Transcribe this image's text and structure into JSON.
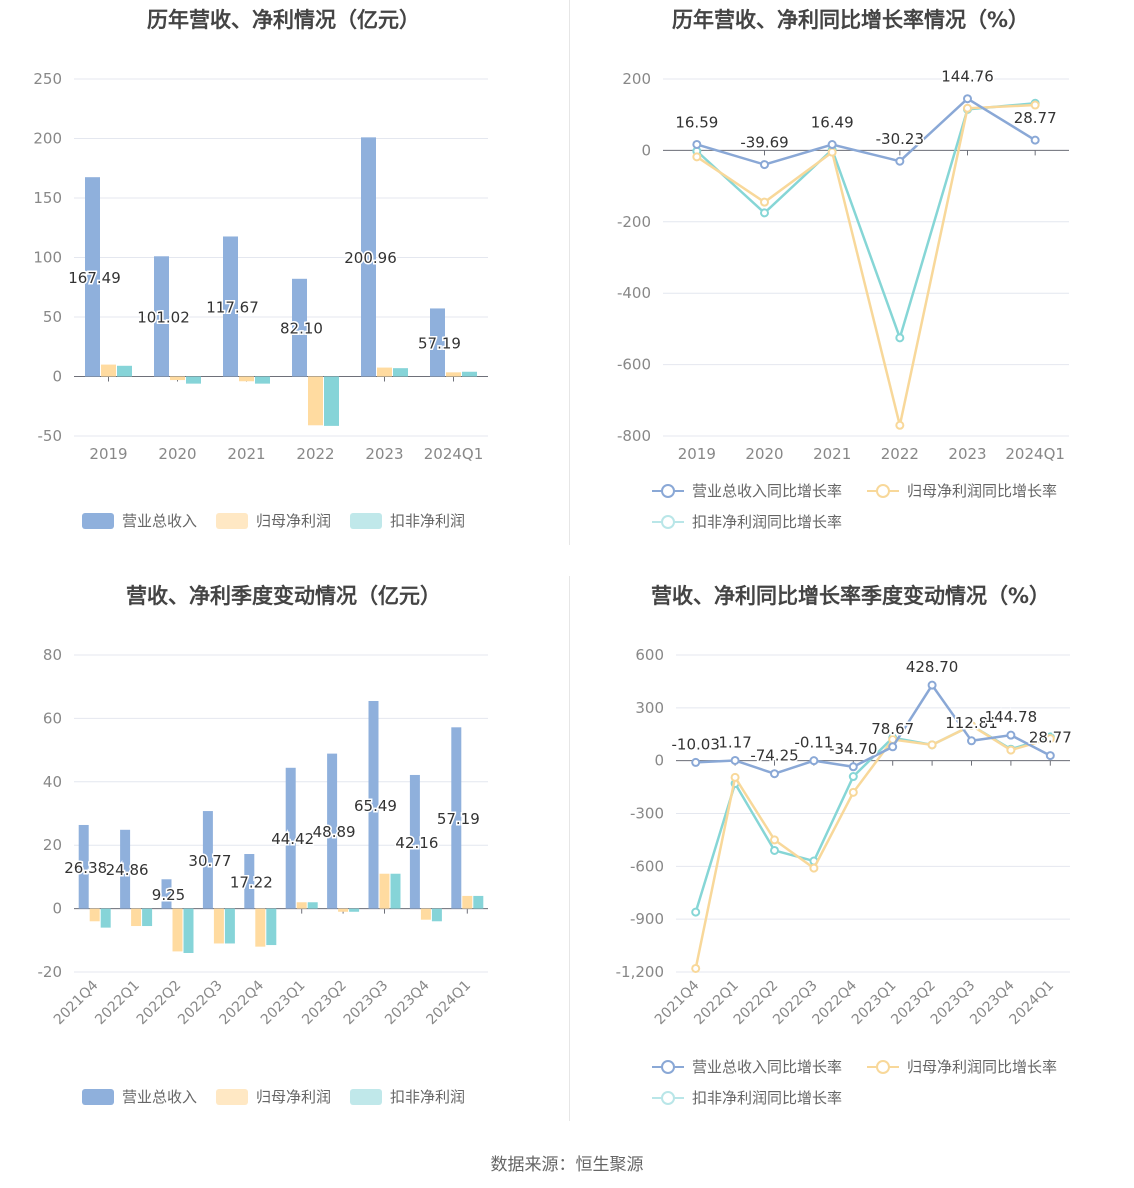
{
  "source": "数据来源：恒生聚源",
  "colors": {
    "revenue": "#8fb0dc",
    "netprofit": "#ffdba0",
    "deducted": "#86d4d8",
    "revenue_line": "#8aa8d6",
    "netprofit_line": "#f8d89a",
    "deducted_line": "#86d6d6"
  },
  "chart_data": [
    {
      "id": "annual_amounts",
      "type": "bar",
      "title": "历年营收、净利情况（亿元）",
      "categories": [
        "2019",
        "2020",
        "2021",
        "2022",
        "2023",
        "2024Q1"
      ],
      "ylim": [
        -50,
        250
      ],
      "yticks": [
        "-50",
        "0",
        "50",
        "100",
        "150",
        "200",
        "250"
      ],
      "series": [
        {
          "name": "营业总收入",
          "values": [
            167.49,
            101.02,
            117.67,
            82.1,
            200.96,
            57.19
          ]
        },
        {
          "name": "归母净利润",
          "values": [
            10.0,
            -3.0,
            -4.0,
            -41.0,
            7.5,
            3.5
          ]
        },
        {
          "name": "扣非净利润",
          "values": [
            9.0,
            -6.0,
            -6.0,
            -41.5,
            7.0,
            4.0
          ]
        }
      ],
      "data_labels": [
        "167.49",
        "101.02",
        "117.67",
        "82.10",
        "200.96",
        "57.19"
      ],
      "grid": true,
      "legend_position": "bottom"
    },
    {
      "id": "annual_growth",
      "type": "line",
      "title": "历年营收、净利同比增长率情况（%）",
      "categories": [
        "2019",
        "2020",
        "2021",
        "2022",
        "2023",
        "2024Q1"
      ],
      "ylim": [
        -800,
        200
      ],
      "yticks": [
        "-800",
        "-600",
        "-400",
        "-200",
        "0",
        "200"
      ],
      "series": [
        {
          "name": "营业总收入同比增长率",
          "values": [
            16.59,
            -39.69,
            16.49,
            -30.23,
            144.76,
            28.77
          ]
        },
        {
          "name": "归母净利润同比增长率",
          "values": [
            -18,
            -145,
            -5,
            -770,
            118,
            127
          ]
        },
        {
          "name": "扣非净利润同比增长率",
          "values": [
            -2,
            -175,
            2,
            -525,
            115,
            132
          ]
        }
      ],
      "data_labels": [
        "16.59",
        "-39.69",
        "16.49",
        "-30.23",
        "144.76",
        "28.77"
      ],
      "grid": true,
      "legend_position": "bottom"
    },
    {
      "id": "quarterly_amounts",
      "type": "bar",
      "title": "营收、净利季度变动情况（亿元）",
      "categories": [
        "2021Q4",
        "2022Q1",
        "2022Q2",
        "2022Q3",
        "2022Q4",
        "2023Q1",
        "2023Q2",
        "2023Q3",
        "2023Q4",
        "2024Q1"
      ],
      "ylim": [
        -20,
        80
      ],
      "yticks": [
        "-20",
        "0",
        "20",
        "40",
        "60",
        "80"
      ],
      "series": [
        {
          "name": "营业总收入",
          "values": [
            26.38,
            24.86,
            9.25,
            30.77,
            17.22,
            44.42,
            48.89,
            65.49,
            42.16,
            57.19
          ]
        },
        {
          "name": "归母净利润",
          "values": [
            -4.0,
            -5.5,
            -13.5,
            -11.0,
            -12.0,
            2.0,
            -1.0,
            11.0,
            -3.5,
            4.0
          ]
        },
        {
          "name": "扣非净利润",
          "values": [
            -6.0,
            -5.5,
            -14.0,
            -11.0,
            -11.5,
            2.0,
            -1.0,
            11.0,
            -4.0,
            4.0
          ]
        }
      ],
      "data_labels": [
        "26.38",
        "24.86",
        "9.25",
        "30.77",
        "17.22",
        "44.42",
        "48.89",
        "65.49",
        "42.16",
        "57.19"
      ],
      "grid": true,
      "legend_position": "bottom"
    },
    {
      "id": "quarterly_growth",
      "type": "line",
      "title": "营收、净利同比增长率季度变动情况（%）",
      "categories": [
        "2021Q4",
        "2022Q1",
        "2022Q2",
        "2022Q3",
        "2022Q4",
        "2023Q1",
        "2023Q2",
        "2023Q3",
        "2023Q4",
        "2024Q1"
      ],
      "ylim": [
        -1200,
        600
      ],
      "yticks": [
        "-1,200",
        "-900",
        "-600",
        "-300",
        "0",
        "300",
        "600"
      ],
      "series": [
        {
          "name": "营业总收入同比增长率",
          "values": [
            -10.03,
            1.17,
            -74.25,
            -0.11,
            -34.7,
            78.67,
            428.7,
            112.81,
            144.78,
            28.77
          ]
        },
        {
          "name": "归母净利润同比增长率",
          "values": [
            -1180,
            -95,
            -450,
            -610,
            -180,
            120,
            90,
            200,
            60,
            125
          ]
        },
        {
          "name": "扣非净利润同比增长率",
          "values": [
            -860,
            -130,
            -510,
            -570,
            -90,
            130,
            90,
            200,
            65,
            135
          ]
        }
      ],
      "data_labels": [
        "-10.03",
        "1.17",
        "-74.25",
        "-0.11",
        "-34.70",
        "78.67",
        "428.70",
        "112.81",
        "144.78",
        "28.77"
      ],
      "grid": true,
      "legend_position": "bottom"
    }
  ]
}
